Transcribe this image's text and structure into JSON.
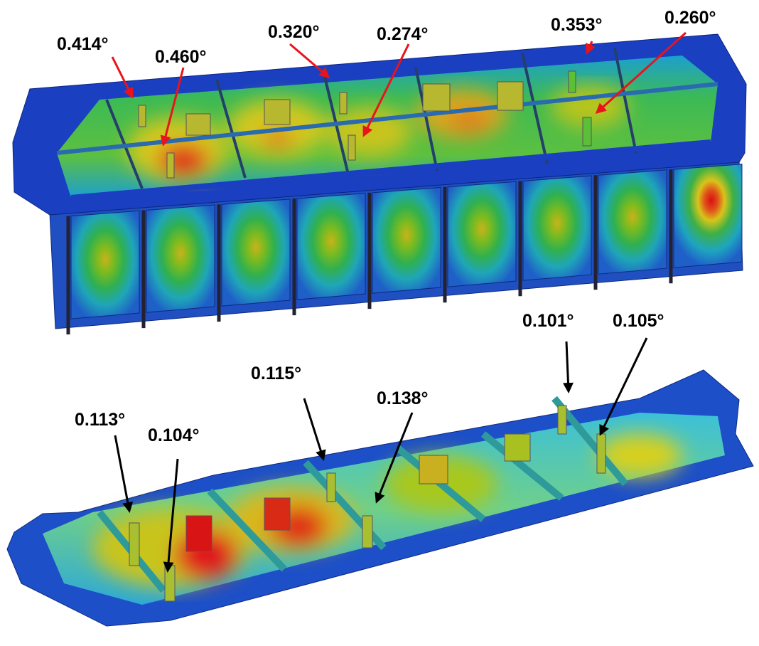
{
  "top_model": {
    "annotations": [
      "0.414°",
      "0.460°",
      "0.320°",
      "0.274°",
      "0.353°",
      "0.260°"
    ]
  },
  "bottom_model": {
    "annotations": [
      "0.101°",
      "0.105°",
      "0.115°",
      "0.138°",
      "0.113°",
      "0.104°"
    ]
  }
}
